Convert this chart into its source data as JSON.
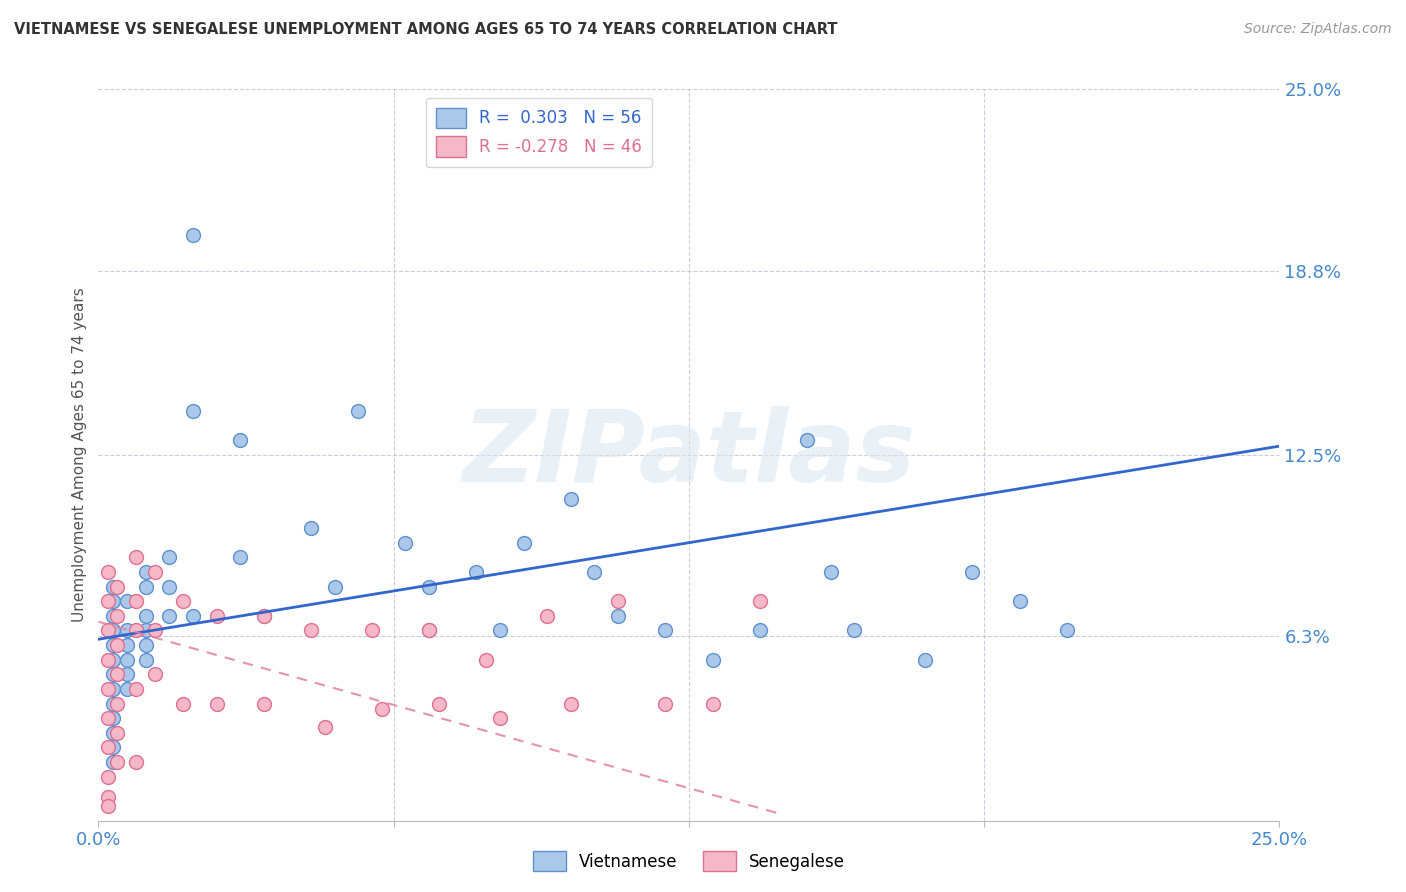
{
  "title": "VIETNAMESE VS SENEGALESE UNEMPLOYMENT AMONG AGES 65 TO 74 YEARS CORRELATION CHART",
  "source": "Source: ZipAtlas.com",
  "ylabel": "Unemployment Among Ages 65 to 74 years",
  "xlim": [
    0.0,
    0.25
  ],
  "ylim": [
    0.0,
    0.25
  ],
  "ytick_labels": [
    "6.3%",
    "12.5%",
    "18.8%",
    "25.0%"
  ],
  "ytick_values": [
    0.063,
    0.125,
    0.188,
    0.25
  ],
  "viet_color": "#aac8e8",
  "viet_edge_color": "#6090d0",
  "sene_color": "#f5b8c8",
  "sene_edge_color": "#e07090",
  "viet_line_color": "#3366cc",
  "sene_line_color": "#e080a0",
  "background_color": "#ffffff",
  "watermark": "ZIPatlas",
  "viet_scatter_x": [
    0.003,
    0.003,
    0.003,
    0.003,
    0.003,
    0.003,
    0.003,
    0.003,
    0.003,
    0.003,
    0.003,
    0.003,
    0.003,
    0.006,
    0.006,
    0.006,
    0.006,
    0.006,
    0.006,
    0.01,
    0.01,
    0.01,
    0.01,
    0.01,
    0.01,
    0.015,
    0.015,
    0.015,
    0.02,
    0.02,
    0.02,
    0.03,
    0.03,
    0.035,
    0.045,
    0.05,
    0.055,
    0.065,
    0.07,
    0.07,
    0.08,
    0.085,
    0.09,
    0.1,
    0.105,
    0.11,
    0.12,
    0.13,
    0.14,
    0.15,
    0.155,
    0.16,
    0.175,
    0.185,
    0.195,
    0.205
  ],
  "viet_scatter_y": [
    0.065,
    0.06,
    0.055,
    0.05,
    0.045,
    0.04,
    0.035,
    0.03,
    0.025,
    0.02,
    0.07,
    0.075,
    0.08,
    0.065,
    0.06,
    0.055,
    0.05,
    0.045,
    0.075,
    0.08,
    0.07,
    0.065,
    0.06,
    0.055,
    0.085,
    0.09,
    0.08,
    0.07,
    0.2,
    0.14,
    0.07,
    0.13,
    0.09,
    0.07,
    0.1,
    0.08,
    0.14,
    0.095,
    0.08,
    0.065,
    0.085,
    0.065,
    0.095,
    0.11,
    0.085,
    0.07,
    0.065,
    0.055,
    0.065,
    0.13,
    0.085,
    0.065,
    0.055,
    0.085,
    0.075,
    0.065
  ],
  "sene_scatter_x": [
    0.002,
    0.002,
    0.002,
    0.002,
    0.002,
    0.002,
    0.002,
    0.002,
    0.002,
    0.004,
    0.004,
    0.004,
    0.004,
    0.004,
    0.004,
    0.004,
    0.008,
    0.008,
    0.008,
    0.008,
    0.008,
    0.012,
    0.012,
    0.012,
    0.018,
    0.018,
    0.025,
    0.025,
    0.035,
    0.035,
    0.045,
    0.048,
    0.058,
    0.06,
    0.07,
    0.072,
    0.082,
    0.085,
    0.095,
    0.1,
    0.11,
    0.12,
    0.13,
    0.14,
    0.002
  ],
  "sene_scatter_y": [
    0.085,
    0.075,
    0.065,
    0.055,
    0.045,
    0.035,
    0.025,
    0.015,
    0.008,
    0.08,
    0.07,
    0.06,
    0.05,
    0.04,
    0.03,
    0.02,
    0.09,
    0.075,
    0.065,
    0.045,
    0.02,
    0.085,
    0.065,
    0.05,
    0.075,
    0.04,
    0.07,
    0.04,
    0.07,
    0.04,
    0.065,
    0.032,
    0.065,
    0.038,
    0.065,
    0.04,
    0.055,
    0.035,
    0.07,
    0.04,
    0.075,
    0.04,
    0.04,
    0.075,
    0.005
  ],
  "viet_trendline_x": [
    0.0,
    0.25
  ],
  "viet_trendline_y": [
    0.062,
    0.128
  ],
  "sene_trendline_x": [
    0.0,
    0.145
  ],
  "sene_trendline_y": [
    0.068,
    0.002
  ],
  "grid_yticks": [
    0.063,
    0.125,
    0.188,
    0.25
  ],
  "grid_xticks": [
    0.0625,
    0.125,
    0.1875,
    0.25
  ]
}
